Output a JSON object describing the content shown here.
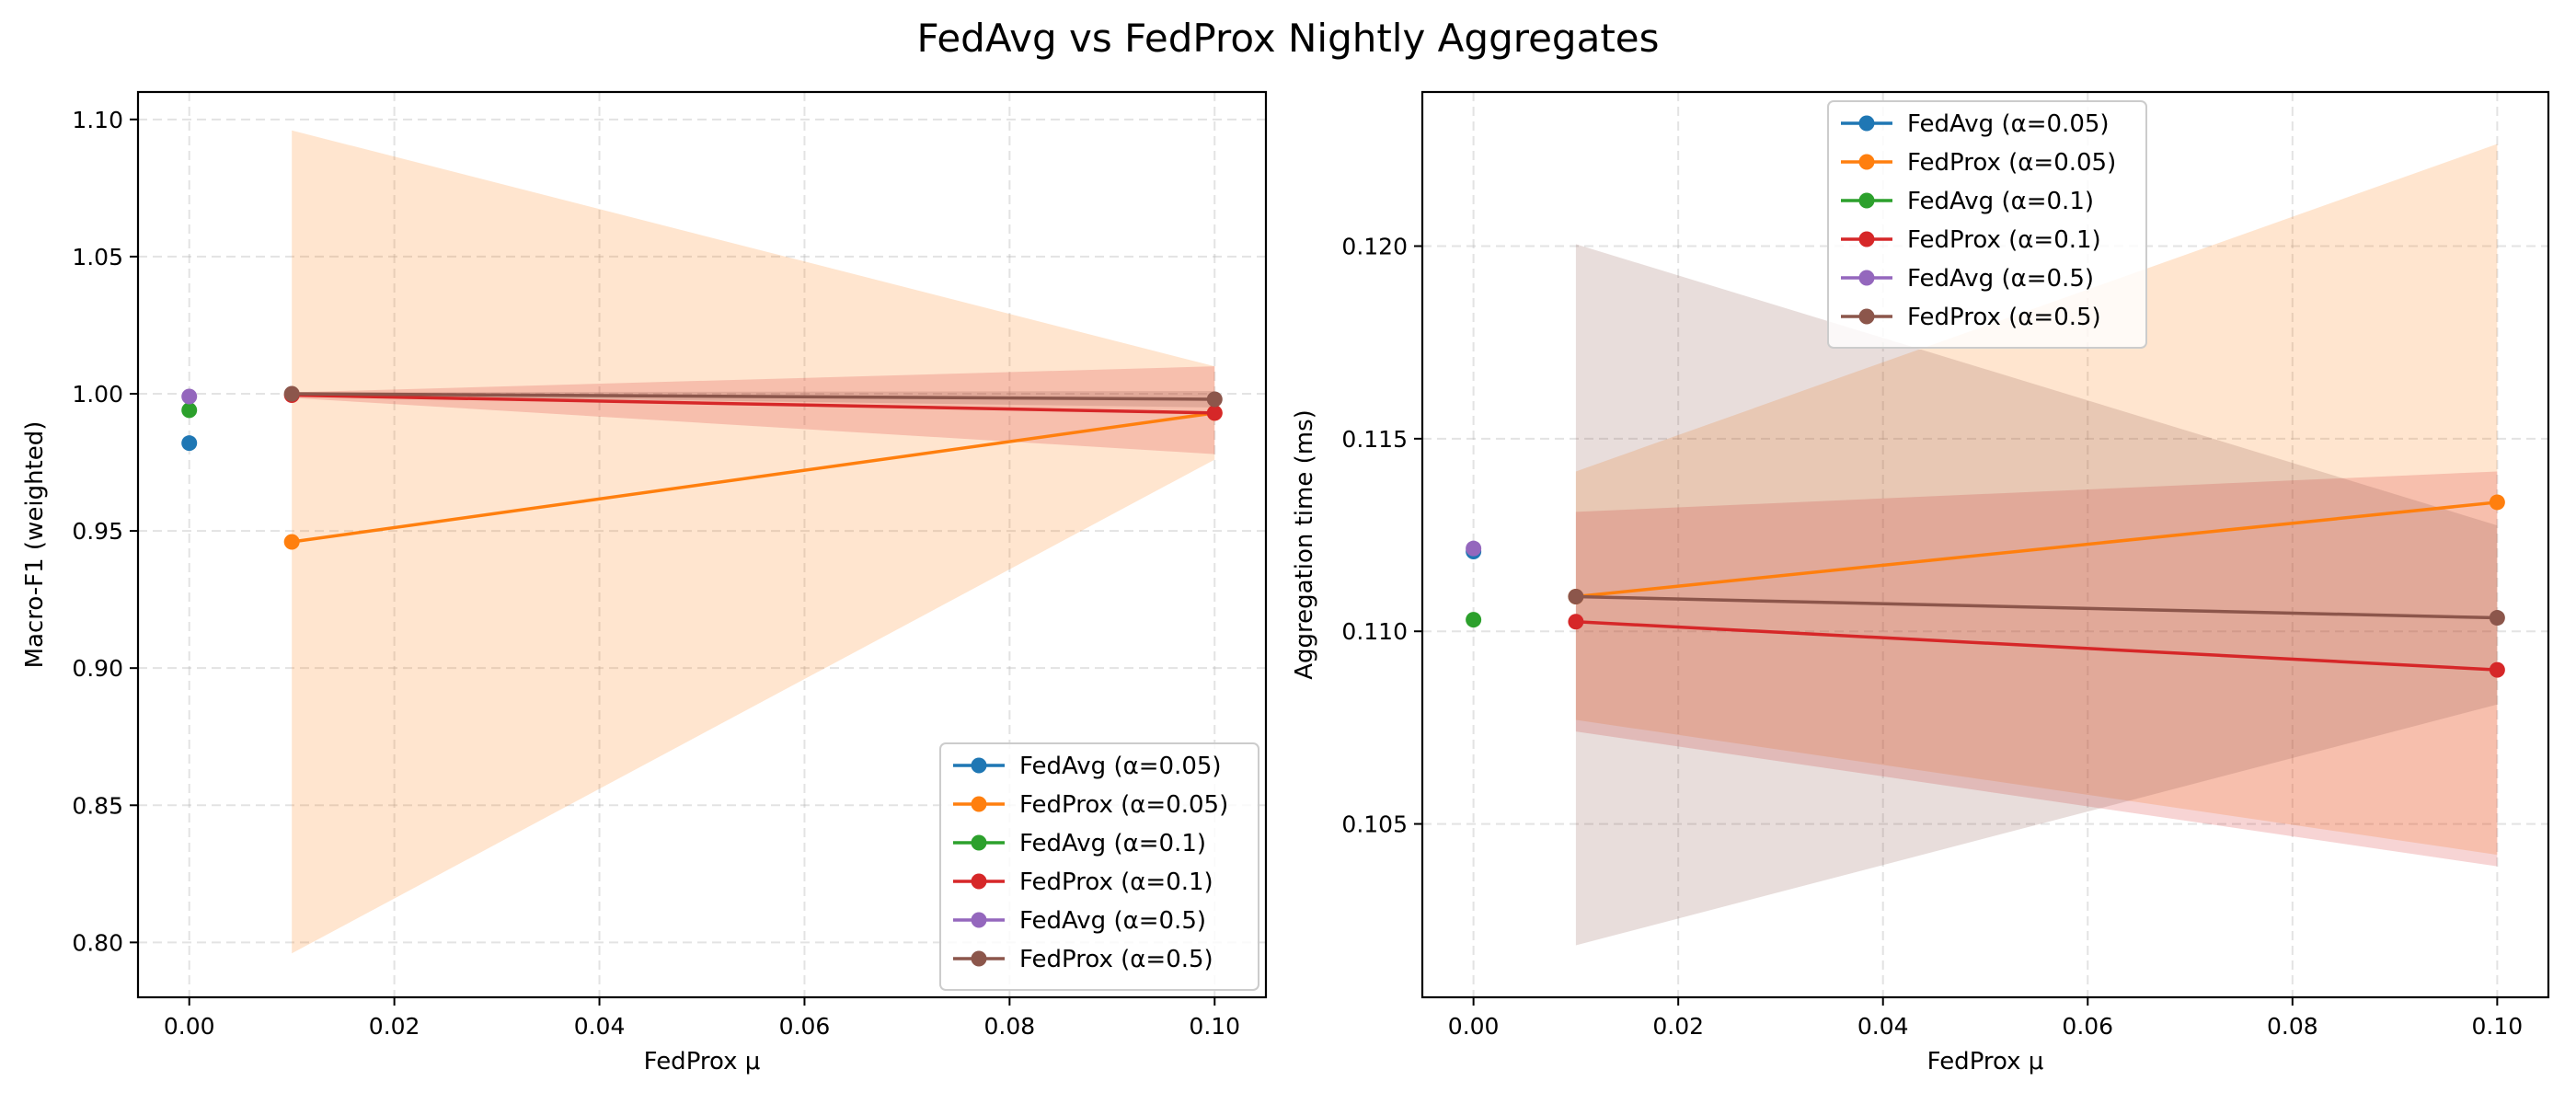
{
  "figure": {
    "title": "FedAvg vs FedProx Nightly Aggregates"
  },
  "chart_data": [
    {
      "type": "line",
      "xlabel": "FedProx μ",
      "ylabel": "Macro-F1 (weighted)",
      "xlim": [
        -0.005,
        0.105
      ],
      "ylim": [
        0.78,
        1.11
      ],
      "xticks": [
        0.0,
        0.02,
        0.04,
        0.06,
        0.08,
        0.1
      ],
      "xtick_labels": [
        "0.00",
        "0.02",
        "0.04",
        "0.06",
        "0.08",
        "0.10"
      ],
      "yticks": [
        0.8,
        0.85,
        0.9,
        0.95,
        1.0,
        1.05,
        1.1
      ],
      "ytick_labels": [
        "0.80",
        "0.85",
        "0.90",
        "0.95",
        "1.00",
        "1.05",
        "1.10"
      ],
      "grid": true,
      "legend_position": "lower-right",
      "series": [
        {
          "name": "FedAvg (α=0.05)",
          "color": "#1f77b4",
          "x": [
            0.0
          ],
          "y": [
            0.982
          ]
        },
        {
          "name": "FedProx (α=0.05)",
          "color": "#ff7f0e",
          "x": [
            0.01,
            0.1
          ],
          "y": [
            0.946,
            0.993
          ],
          "band_low": [
            0.796,
            0.976
          ],
          "band_high": [
            1.096,
            1.01
          ]
        },
        {
          "name": "FedAvg (α=0.1)",
          "color": "#2ca02c",
          "x": [
            0.0
          ],
          "y": [
            0.994
          ]
        },
        {
          "name": "FedProx (α=0.1)",
          "color": "#d62728",
          "x": [
            0.01,
            0.1
          ],
          "y": [
            0.9995,
            0.993
          ],
          "band_low": [
            0.9985,
            0.978
          ],
          "band_high": [
            1.0005,
            1.01
          ]
        },
        {
          "name": "FedAvg (α=0.5)",
          "color": "#9467bd",
          "x": [
            0.0
          ],
          "y": [
            0.999
          ]
        },
        {
          "name": "FedProx (α=0.5)",
          "color": "#8c564b",
          "x": [
            0.01,
            0.1
          ],
          "y": [
            1.0,
            0.998
          ],
          "band_low": [
            0.9995,
            0.995
          ],
          "band_high": [
            1.0005,
            1.001
          ]
        }
      ]
    },
    {
      "type": "line",
      "xlabel": "FedProx μ",
      "ylabel": "Aggregation time (ms)",
      "xlim": [
        -0.005,
        0.105
      ],
      "ylim": [
        0.1005,
        0.124
      ],
      "xticks": [
        0.0,
        0.02,
        0.04,
        0.06,
        0.08,
        0.1
      ],
      "xtick_labels": [
        "0.00",
        "0.02",
        "0.04",
        "0.06",
        "0.08",
        "0.10"
      ],
      "yticks": [
        0.105,
        0.11,
        0.115,
        0.12
      ],
      "ytick_labels": [
        "0.105",
        "0.110",
        "0.115",
        "0.120"
      ],
      "grid": true,
      "legend_position": "upper-center",
      "series": [
        {
          "name": "FedAvg (α=0.05)",
          "color": "#1f77b4",
          "x": [
            0.0
          ],
          "y": [
            0.11207
          ]
        },
        {
          "name": "FedProx (α=0.05)",
          "color": "#ff7f0e",
          "x": [
            0.01,
            0.1
          ],
          "y": [
            0.1109,
            0.11335
          ],
          "band_low": [
            0.1077,
            0.1042
          ],
          "band_high": [
            0.11415,
            0.12265
          ]
        },
        {
          "name": "FedAvg (α=0.1)",
          "color": "#2ca02c",
          "x": [
            0.0
          ],
          "y": [
            0.1103
          ]
        },
        {
          "name": "FedProx (α=0.1)",
          "color": "#d62728",
          "x": [
            0.01,
            0.1
          ],
          "y": [
            0.11025,
            0.109
          ],
          "band_low": [
            0.1074,
            0.1039
          ],
          "band_high": [
            0.1131,
            0.11415
          ]
        },
        {
          "name": "FedAvg (α=0.5)",
          "color": "#9467bd",
          "x": [
            0.0
          ],
          "y": [
            0.11215
          ]
        },
        {
          "name": "FedProx (α=0.5)",
          "color": "#8c564b",
          "x": [
            0.01,
            0.1
          ],
          "y": [
            0.1109,
            0.11035
          ],
          "band_low": [
            0.10185,
            0.1081
          ],
          "band_high": [
            0.12005,
            0.11275
          ]
        }
      ]
    }
  ]
}
